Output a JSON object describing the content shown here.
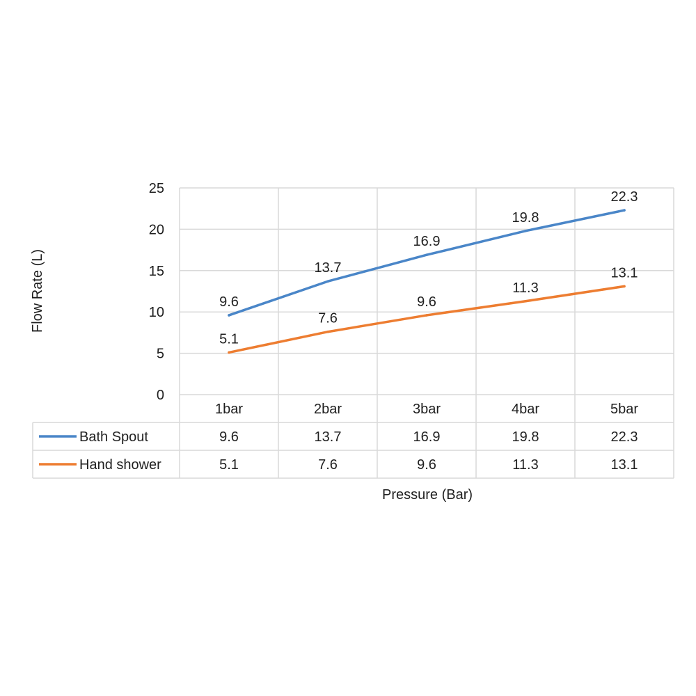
{
  "chart_data": {
    "type": "line",
    "title": "",
    "xlabel": "Pressure (Bar)",
    "ylabel": "Flow Rate (L)",
    "categories": [
      "1bar",
      "2bar",
      "3bar",
      "4bar",
      "5bar"
    ],
    "ylim": [
      0,
      25
    ],
    "yticks": [
      "0",
      "5",
      "10",
      "15",
      "20",
      "25"
    ],
    "grid": true,
    "legend": "data-table",
    "series": [
      {
        "name": "Bath Spout",
        "color": "#4a86c8",
        "values": [
          9.6,
          13.7,
          16.9,
          19.8,
          22.3
        ],
        "labels": [
          "9.6",
          "13.7",
          "16.9",
          "19.8",
          "22.3"
        ]
      },
      {
        "name": "Hand shower",
        "color": "#ed7d31",
        "values": [
          5.1,
          7.6,
          9.6,
          11.3,
          13.1
        ],
        "labels": [
          "5.1",
          "7.6",
          "9.6",
          "11.3",
          "13.1"
        ]
      }
    ]
  }
}
